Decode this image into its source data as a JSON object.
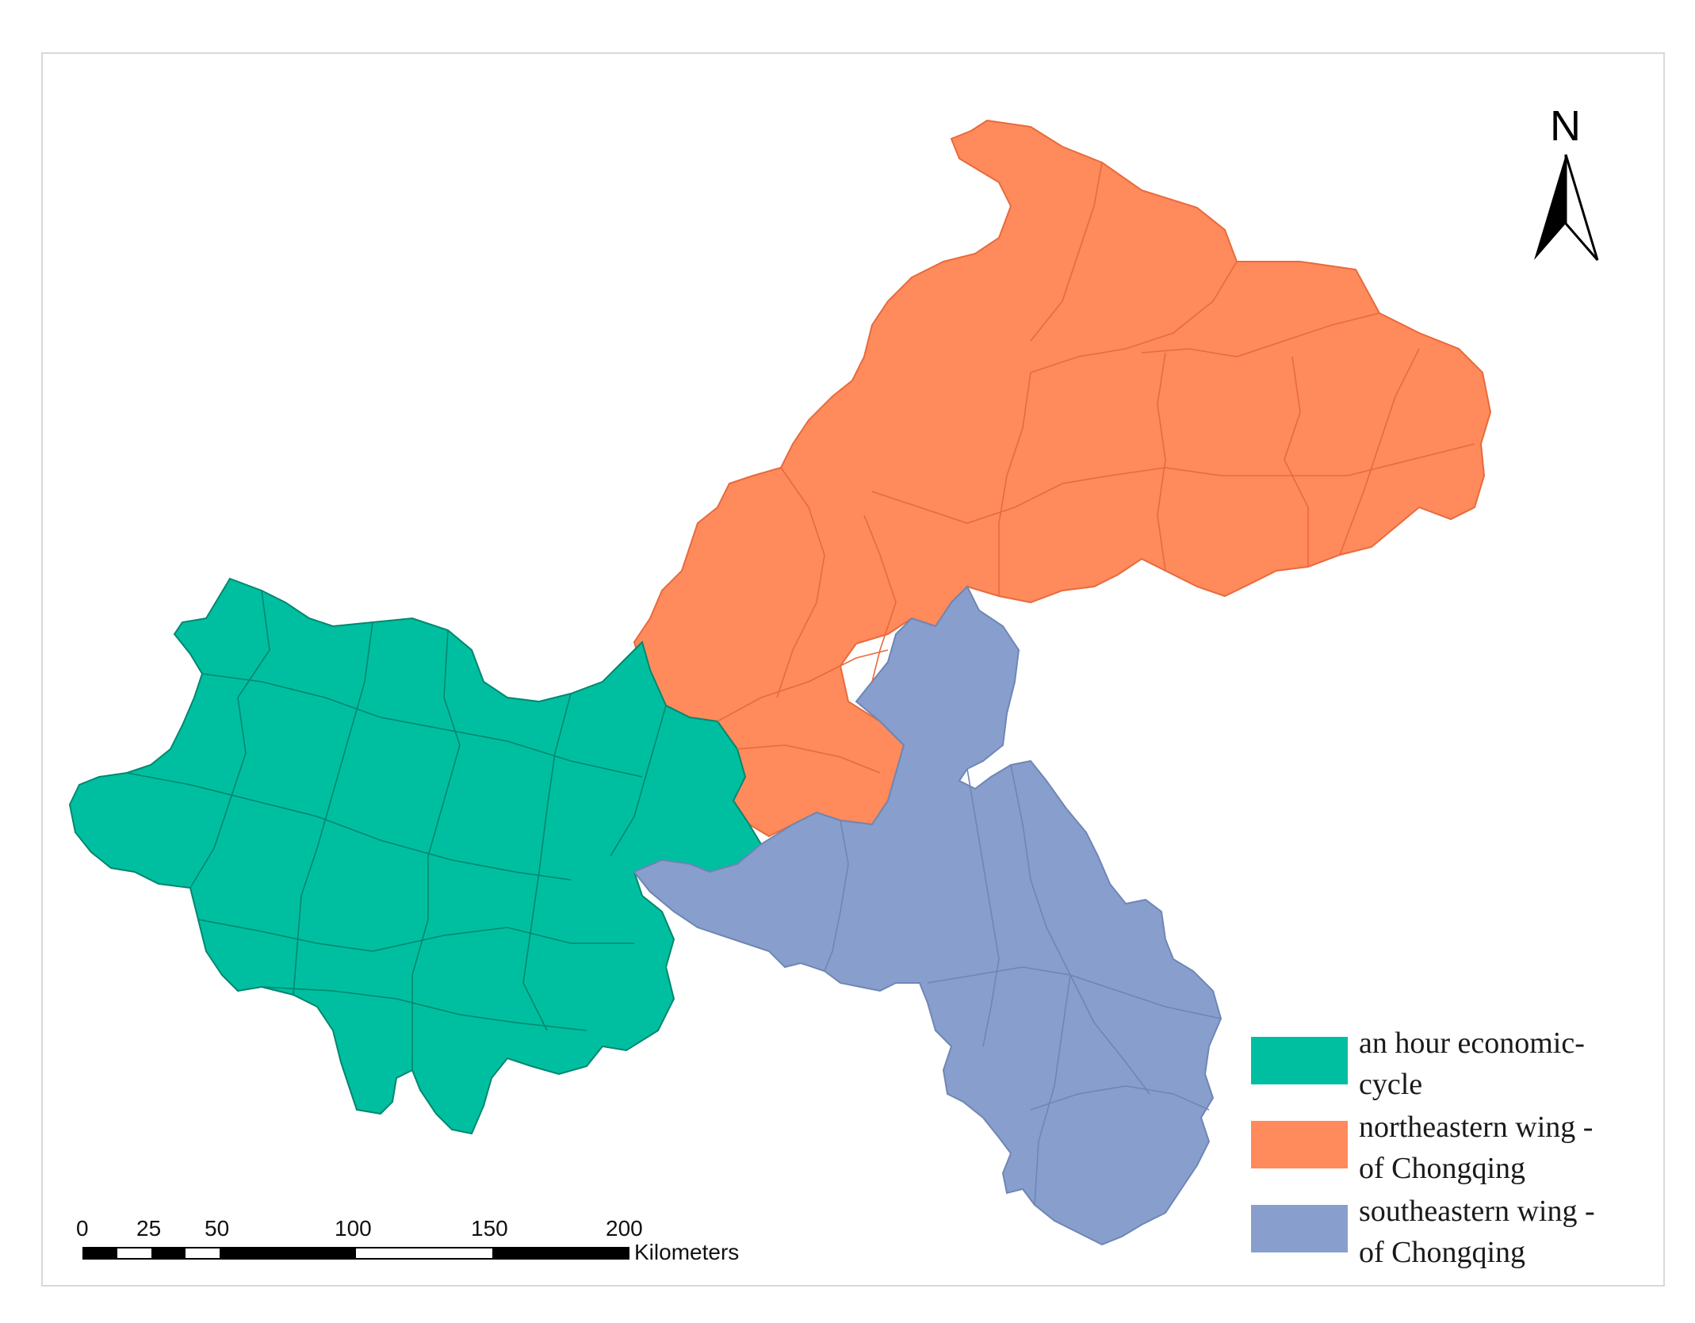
{
  "north_arrow": {
    "letter": "N",
    "icon": "north-arrow-icon"
  },
  "regions": [
    {
      "id": "hour-economic-cycle",
      "color": "#00bfa0",
      "border": "#00876f"
    },
    {
      "id": "northeastern-wing",
      "color": "#ff8a5c",
      "border": "#e86a3c"
    },
    {
      "id": "southeastern-wing",
      "color": "#889fcd",
      "border": "#6f86b5"
    }
  ],
  "legend": {
    "items": [
      {
        "label_line1": "an hour economic-",
        "label_line2": "cycle",
        "color": "#00bfa0"
      },
      {
        "label_line1": "northeastern wing -",
        "label_line2": "of Chongqing",
        "color": "#ff8a5c"
      },
      {
        "label_line1": "southeastern wing -",
        "label_line2": "of Chongqing",
        "color": "#889fcd"
      }
    ]
  },
  "scale_bar": {
    "ticks": [
      "0",
      "25",
      "50",
      "100",
      "150",
      "200"
    ],
    "unit": "Kilometers"
  }
}
